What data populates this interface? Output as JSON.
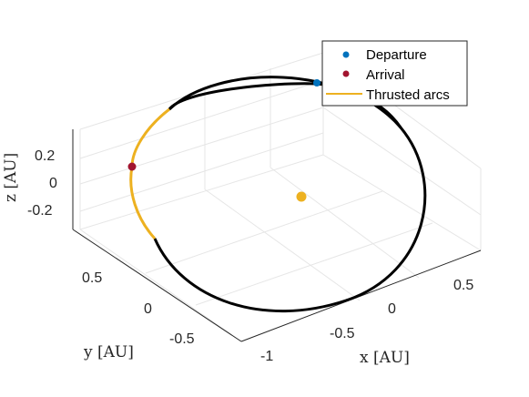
{
  "chart_data": {
    "type": "line",
    "title": "",
    "xlabel": "x [AU]",
    "ylabel": "y [AU]",
    "zlabel": "z [AU]",
    "x_ticks": [
      "-1",
      "-0.5",
      "0",
      "0.5"
    ],
    "y_ticks": [
      "-0.5",
      "0",
      "0.5"
    ],
    "z_ticks": [
      "0.2",
      "0",
      "-0.2"
    ],
    "grid": true,
    "view": "3d",
    "legend_position": "top-right",
    "legend": [
      {
        "label": "Departure",
        "kind": "marker",
        "color": "#0072BD"
      },
      {
        "label": "Arrival",
        "kind": "marker",
        "color": "#A2142F"
      },
      {
        "label": "Thrusted arcs",
        "kind": "line",
        "color": "#EDB120"
      }
    ],
    "series": [
      {
        "name": "Departure",
        "color": "#0072BD",
        "points": [
          [
            0.35,
            0.55,
            0.3
          ]
        ]
      },
      {
        "name": "Arrival",
        "color": "#A2142F",
        "points": [
          [
            -0.75,
            0.1,
            0.15
          ]
        ]
      },
      {
        "name": "Thrusted arcs",
        "color": "#EDB120"
      }
    ],
    "sun": {
      "color": "#EDB120",
      "point": [
        0,
        0,
        0
      ]
    }
  }
}
